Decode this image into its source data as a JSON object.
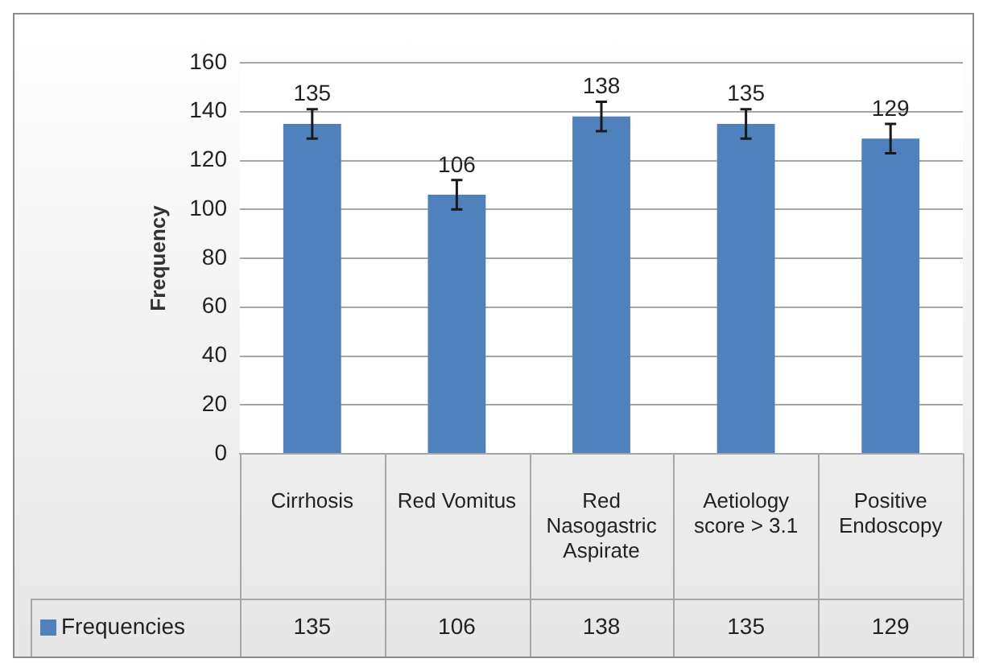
{
  "chart_data": {
    "type": "bar",
    "ylabel": "Frequency",
    "categories": [
      "Cirrhosis",
      "Red Vomitus",
      "Red Nasogastric Aspirate",
      "Aetiology score > 3.1",
      "Positive Endoscopy"
    ],
    "series": [
      {
        "name": "Frequencies",
        "color": "#4f81bd",
        "values": [
          135,
          106,
          138,
          135,
          129
        ],
        "value_labels": [
          "135",
          "106",
          "138",
          "135",
          "129"
        ],
        "errors": [
          6,
          6,
          6,
          6,
          6
        ]
      }
    ],
    "ylim": [
      0,
      160
    ],
    "yticks": [
      0,
      20,
      40,
      60,
      80,
      100,
      120,
      140,
      160
    ],
    "grid": "y",
    "legend": "bottom left",
    "annotations": [
      "135",
      "106",
      "138",
      "135",
      "129"
    ]
  }
}
